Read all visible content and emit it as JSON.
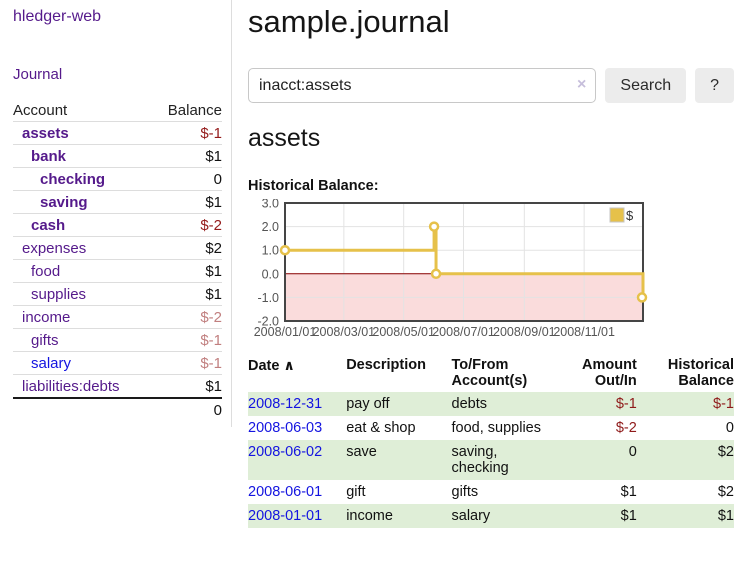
{
  "sidebar": {
    "brand": "hledger-web",
    "nav": {
      "journal": "Journal"
    },
    "accounts": {
      "headers": {
        "account": "Account",
        "balance": "Balance"
      },
      "rows": [
        {
          "name": "assets",
          "balance": "$-1"
        },
        {
          "name": "bank",
          "balance": "$1"
        },
        {
          "name": "checking",
          "balance": "0"
        },
        {
          "name": "saving",
          "balance": "$1"
        },
        {
          "name": "cash",
          "balance": "$-2"
        },
        {
          "name": "expenses",
          "balance": "$2"
        },
        {
          "name": "food",
          "balance": "$1"
        },
        {
          "name": "supplies",
          "balance": "$1"
        },
        {
          "name": "income",
          "balance": "$-2"
        },
        {
          "name": "gifts",
          "balance": "$-1"
        },
        {
          "name": "salary",
          "balance": "$-1"
        },
        {
          "name": "liabilities:debts",
          "balance": "$1"
        }
      ],
      "total": "0"
    }
  },
  "main": {
    "title": "sample.journal",
    "search": {
      "value": "inacct:assets",
      "clear_icon": "×",
      "button": "Search",
      "help_button": "?"
    },
    "account_heading": "assets",
    "chart_label": "Historical Balance:"
  },
  "chart_data": {
    "type": "line",
    "title": "Historical Balance",
    "series": [
      {
        "name": "$",
        "color": "#e6c14a",
        "points": [
          [
            "2008-01-01",
            1
          ],
          [
            "2008-06-01",
            1
          ],
          [
            "2008-06-01",
            2
          ],
          [
            "2008-06-03",
            2
          ],
          [
            "2008-06-03",
            0
          ],
          [
            "2008-12-31",
            0
          ],
          [
            "2008-12-31",
            -1
          ]
        ]
      }
    ],
    "markers": [
      [
        "2008-01-01",
        1
      ],
      [
        "2008-06-01",
        2
      ],
      [
        "2008-06-03",
        0
      ],
      [
        "2008-12-31",
        -1
      ]
    ],
    "yticks": [
      "3.0",
      "2.0",
      "1.0",
      "0.0",
      "-1.0",
      "-2.0"
    ],
    "xticks": [
      "2008/01/01",
      "2008/03/01",
      "2008/05/01",
      "2008/07/01",
      "2008/09/01",
      "2008/11/01"
    ],
    "ylim": [
      -2,
      3
    ],
    "xlim": [
      "2008-01-01",
      "2008-12-31"
    ],
    "grid": true,
    "legend": {
      "label": "$",
      "position": "top-right"
    },
    "negative_region_color": "#fadcdc",
    "zero_line_color": "#8b0000"
  },
  "transactions": {
    "headers": {
      "date": "Date",
      "sort_icon": "∧",
      "description": "Description",
      "accounts": "To/From Account(s)",
      "amount": "Amount Out/In",
      "balance": "Historical Balance"
    },
    "rows": [
      {
        "date": "2008-12-31",
        "description": "pay off",
        "accounts": "debts",
        "amount": "$-1",
        "balance": "$-1"
      },
      {
        "date": "2008-06-03",
        "description": "eat & shop",
        "accounts": "food, supplies",
        "amount": "$-2",
        "balance": "0"
      },
      {
        "date": "2008-06-02",
        "description": "save",
        "accounts": "saving, checking",
        "amount": "0",
        "balance": "$2"
      },
      {
        "date": "2008-06-01",
        "description": "gift",
        "accounts": "gifts",
        "amount": "$1",
        "balance": "$2"
      },
      {
        "date": "2008-01-01",
        "description": "income",
        "accounts": "salary",
        "amount": "$1",
        "balance": "$1"
      }
    ]
  }
}
